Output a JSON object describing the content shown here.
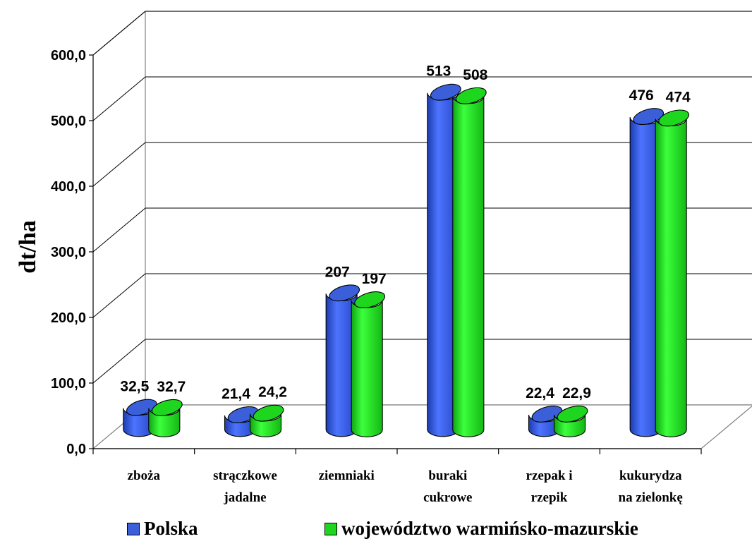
{
  "chart_data": {
    "type": "bar",
    "title": "",
    "ylabel": "dt/ha",
    "xlabel": "",
    "ylim": [
      0,
      600
    ],
    "yticks": [
      "0,0",
      "100,0",
      "200,0",
      "300,0",
      "400,0",
      "500,0",
      "600,0"
    ],
    "categories": [
      [
        "zboża"
      ],
      [
        "strączkowe",
        "jadalne"
      ],
      [
        "ziemniaki"
      ],
      [
        "buraki",
        "cukrowe"
      ],
      [
        "rzepak i",
        "rzepik"
      ],
      [
        "kukurydza",
        "na zielonkę"
      ]
    ],
    "series": [
      {
        "name": "Polska",
        "color": "#3a5fd9",
        "values": [
          32.5,
          21.4,
          207,
          513,
          22.4,
          476
        ],
        "labels": [
          "32,5",
          "21,4",
          "207",
          "513",
          "22,4",
          "476"
        ]
      },
      {
        "name": "województwo warmińsko-mazurskie",
        "color": "#1fd61f",
        "values": [
          32.7,
          24.2,
          197,
          508,
          22.9,
          474
        ],
        "labels": [
          "32,7",
          "24,2",
          "197",
          "508",
          "22,9",
          "474"
        ]
      }
    ],
    "grid": true,
    "legend": "bottom"
  }
}
